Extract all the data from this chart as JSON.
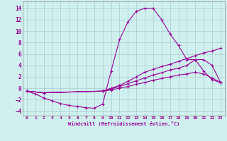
{
  "xlabel": "Windchill (Refroidissement éolien,°C)",
  "bg_color": "#cff0ee",
  "line_color": "#990099",
  "grid_color": "#aacccc",
  "xlim": [
    -0.5,
    23.5
  ],
  "ylim": [
    -4.8,
    15.2
  ],
  "xticks": [
    0,
    1,
    2,
    3,
    4,
    5,
    6,
    7,
    8,
    9,
    10,
    11,
    12,
    13,
    14,
    15,
    16,
    17,
    18,
    19,
    20,
    21,
    22,
    23
  ],
  "yticks": [
    -4,
    -2,
    0,
    2,
    4,
    6,
    8,
    10,
    12,
    14
  ],
  "curve1_x": [
    0,
    1,
    2,
    3,
    4,
    5,
    6,
    7,
    8,
    9,
    10,
    11,
    12,
    13,
    14,
    15,
    16,
    17,
    18,
    19,
    20,
    21,
    22,
    23
  ],
  "curve1_y": [
    -0.5,
    -1.0,
    -1.7,
    -2.2,
    -2.7,
    -3.0,
    -3.2,
    -3.4,
    -3.5,
    -2.8,
    3.0,
    8.5,
    11.6,
    13.5,
    14.0,
    14.0,
    12.0,
    9.5,
    7.5,
    5.0,
    5.0,
    3.0,
    1.5,
    1.0
  ],
  "curve2_x": [
    0,
    2,
    9,
    10,
    11,
    12,
    13,
    14,
    15,
    16,
    17,
    18,
    19,
    20,
    21,
    22,
    23
  ],
  "curve2_y": [
    -0.5,
    -0.8,
    -0.5,
    0.0,
    0.5,
    1.2,
    2.0,
    2.8,
    3.3,
    3.8,
    4.2,
    4.7,
    5.2,
    5.7,
    6.2,
    6.5,
    7.0
  ],
  "curve3_x": [
    0,
    2,
    9,
    10,
    11,
    12,
    13,
    14,
    15,
    16,
    17,
    18,
    19,
    20,
    21,
    22,
    23
  ],
  "curve3_y": [
    -0.5,
    -0.8,
    -0.5,
    -0.1,
    0.3,
    0.8,
    1.3,
    1.8,
    2.3,
    2.7,
    3.2,
    3.5,
    4.0,
    5.0,
    5.0,
    4.0,
    1.0
  ],
  "curve4_x": [
    0,
    2,
    9,
    10,
    11,
    12,
    13,
    14,
    15,
    16,
    17,
    18,
    19,
    20,
    21,
    22,
    23
  ],
  "curve4_y": [
    -0.5,
    -0.8,
    -0.5,
    -0.3,
    0.0,
    0.3,
    0.7,
    1.0,
    1.4,
    1.7,
    2.0,
    2.3,
    2.5,
    2.8,
    2.5,
    1.8,
    1.0
  ]
}
